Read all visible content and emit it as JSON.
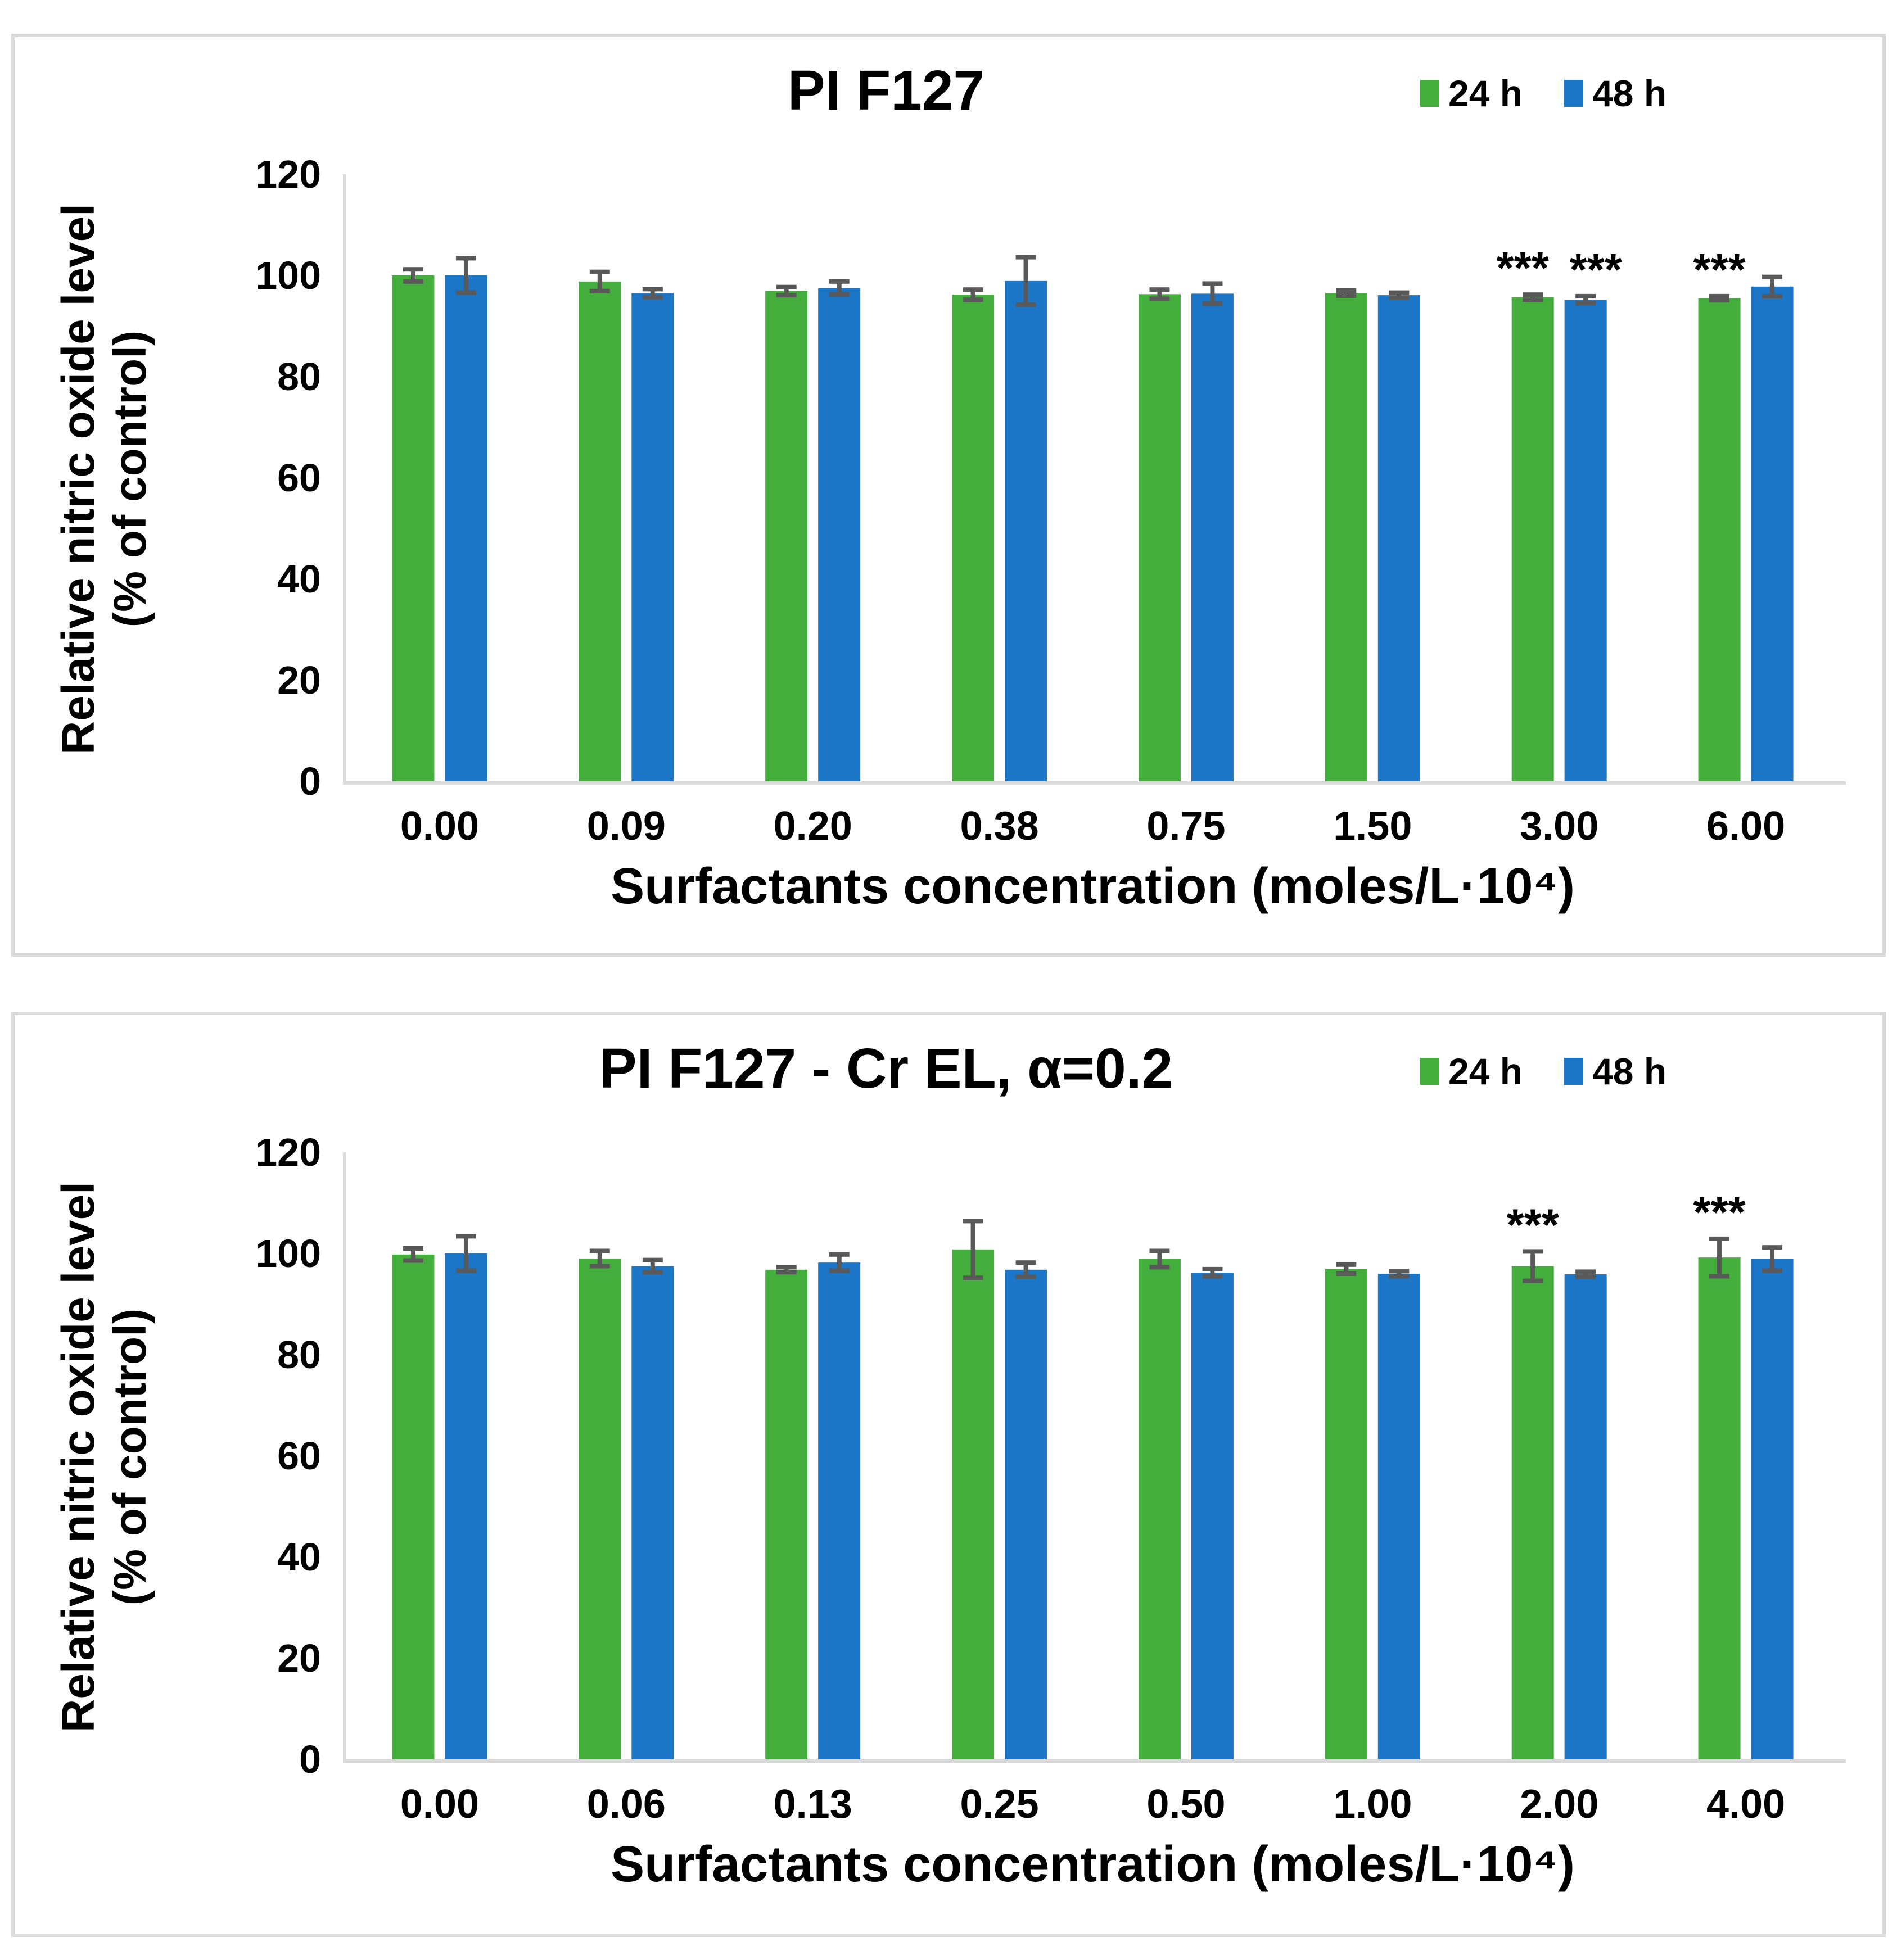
{
  "figure": {
    "background": "#ffffff",
    "panel_border_color": "#d9d9d9",
    "axis_line_color": "#d9d9d9",
    "text_color": "#000000"
  },
  "chart_data": [
    {
      "type": "bar",
      "title": "PI F127",
      "xlabel": "Surfactants concentration (moles/L·10⁴)",
      "ylabel_line1": "Relative nitric oxide level",
      "ylabel_line2": "(% of control)",
      "categories": [
        "0.00",
        "0.09",
        "0.20",
        "0.38",
        "0.75",
        "1.50",
        "3.00",
        "6.00"
      ],
      "yticks": [
        0,
        20,
        40,
        60,
        80,
        100,
        120
      ],
      "ylim": [
        0,
        120
      ],
      "grid": false,
      "legend_position": "top-right",
      "error_color": "#595959",
      "series": [
        {
          "name": "24 h",
          "color": "#43AE3B",
          "values": [
            100,
            98.8,
            96.9,
            96.2,
            96.3,
            96.5,
            95.7,
            95.5
          ],
          "errors": [
            1.2,
            1.9,
            0.8,
            1.0,
            0.9,
            0.5,
            0.5,
            0.4
          ]
        },
        {
          "name": "48 h",
          "color": "#1B76C8",
          "values": [
            100,
            96.5,
            97.5,
            98.9,
            96.4,
            96.1,
            95.2,
            97.8
          ],
          "errors": [
            3.4,
            0.8,
            1.3,
            4.7,
            2.0,
            0.5,
            0.7,
            1.9
          ]
        }
      ],
      "annotations": [
        {
          "category": "3.00",
          "series": "24 h",
          "text": "***"
        },
        {
          "category": "3.00",
          "series": "48 h",
          "text": "***"
        },
        {
          "category": "6.00",
          "series": "24 h",
          "text": "***"
        }
      ]
    },
    {
      "type": "bar",
      "title": "PI F127 - Cr EL, α=0.2",
      "xlabel": "Surfactants concentration (moles/L·10⁴)",
      "ylabel_line1": "Relative nitric oxide level",
      "ylabel_line2": "(% of control)",
      "categories": [
        "0.00",
        "0.06",
        "0.13",
        "0.25",
        "0.50",
        "1.00",
        "2.00",
        "4.00"
      ],
      "yticks": [
        0,
        20,
        40,
        60,
        80,
        100,
        120
      ],
      "ylim": [
        0,
        120
      ],
      "grid": false,
      "legend_position": "top-right",
      "error_color": "#595959",
      "series": [
        {
          "name": "24 h",
          "color": "#43AE3B",
          "values": [
            99.8,
            99.0,
            96.8,
            100.8,
            98.9,
            96.9,
            97.5,
            99.2
          ],
          "errors": [
            1.2,
            1.5,
            0.5,
            5.6,
            1.6,
            0.9,
            2.9,
            3.7
          ]
        },
        {
          "name": "48 h",
          "color": "#1B76C8",
          "values": [
            100,
            97.5,
            98.2,
            96.8,
            96.2,
            96.0,
            95.9,
            98.9
          ],
          "errors": [
            3.4,
            1.2,
            1.6,
            1.4,
            0.7,
            0.5,
            0.5,
            2.3
          ]
        }
      ],
      "annotations": [
        {
          "category": "2.00",
          "series": "24 h",
          "text": "***"
        },
        {
          "category": "4.00",
          "series": "24 h",
          "text": "***"
        }
      ]
    }
  ]
}
